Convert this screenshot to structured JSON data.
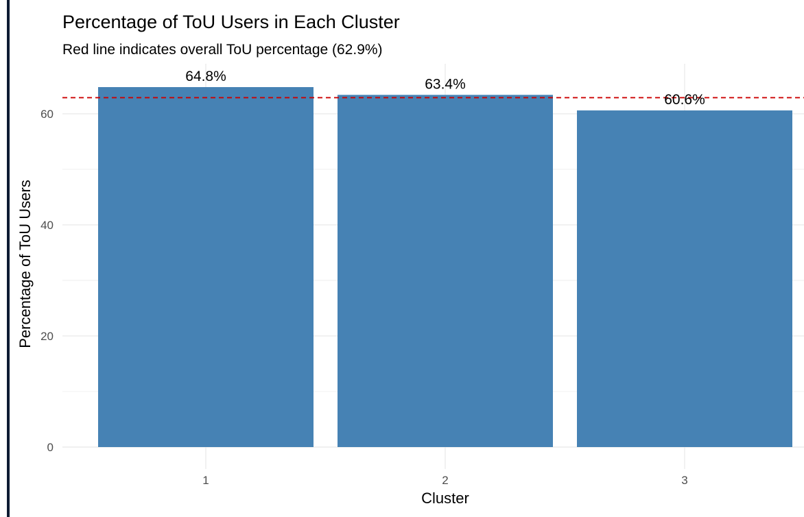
{
  "chart_data": {
    "type": "bar",
    "title": "Percentage of ToU Users in Each Cluster",
    "subtitle": "Red line indicates overall ToU percentage (62.9%)",
    "xlabel": "Cluster",
    "ylabel": "Percentage of ToU Users",
    "categories": [
      "1",
      "2",
      "3"
    ],
    "values": [
      64.8,
      63.4,
      60.6
    ],
    "data_labels": [
      "64.8%",
      "63.4%",
      "60.6%"
    ],
    "ylim": [
      0,
      69
    ],
    "yticks": [
      0,
      20,
      40,
      60
    ],
    "yticks_labels": [
      "0",
      "20",
      "40",
      "60"
    ],
    "minor_gridlines": [
      10,
      30,
      50
    ],
    "reference_line": {
      "value": 62.9,
      "style": "dashed"
    },
    "grid": true,
    "legend": "none"
  },
  "colors": {
    "bar": "#4682b4",
    "reference_line": "#cc0000",
    "grid": "#ebebeb",
    "left_border": "#0d1b33"
  }
}
